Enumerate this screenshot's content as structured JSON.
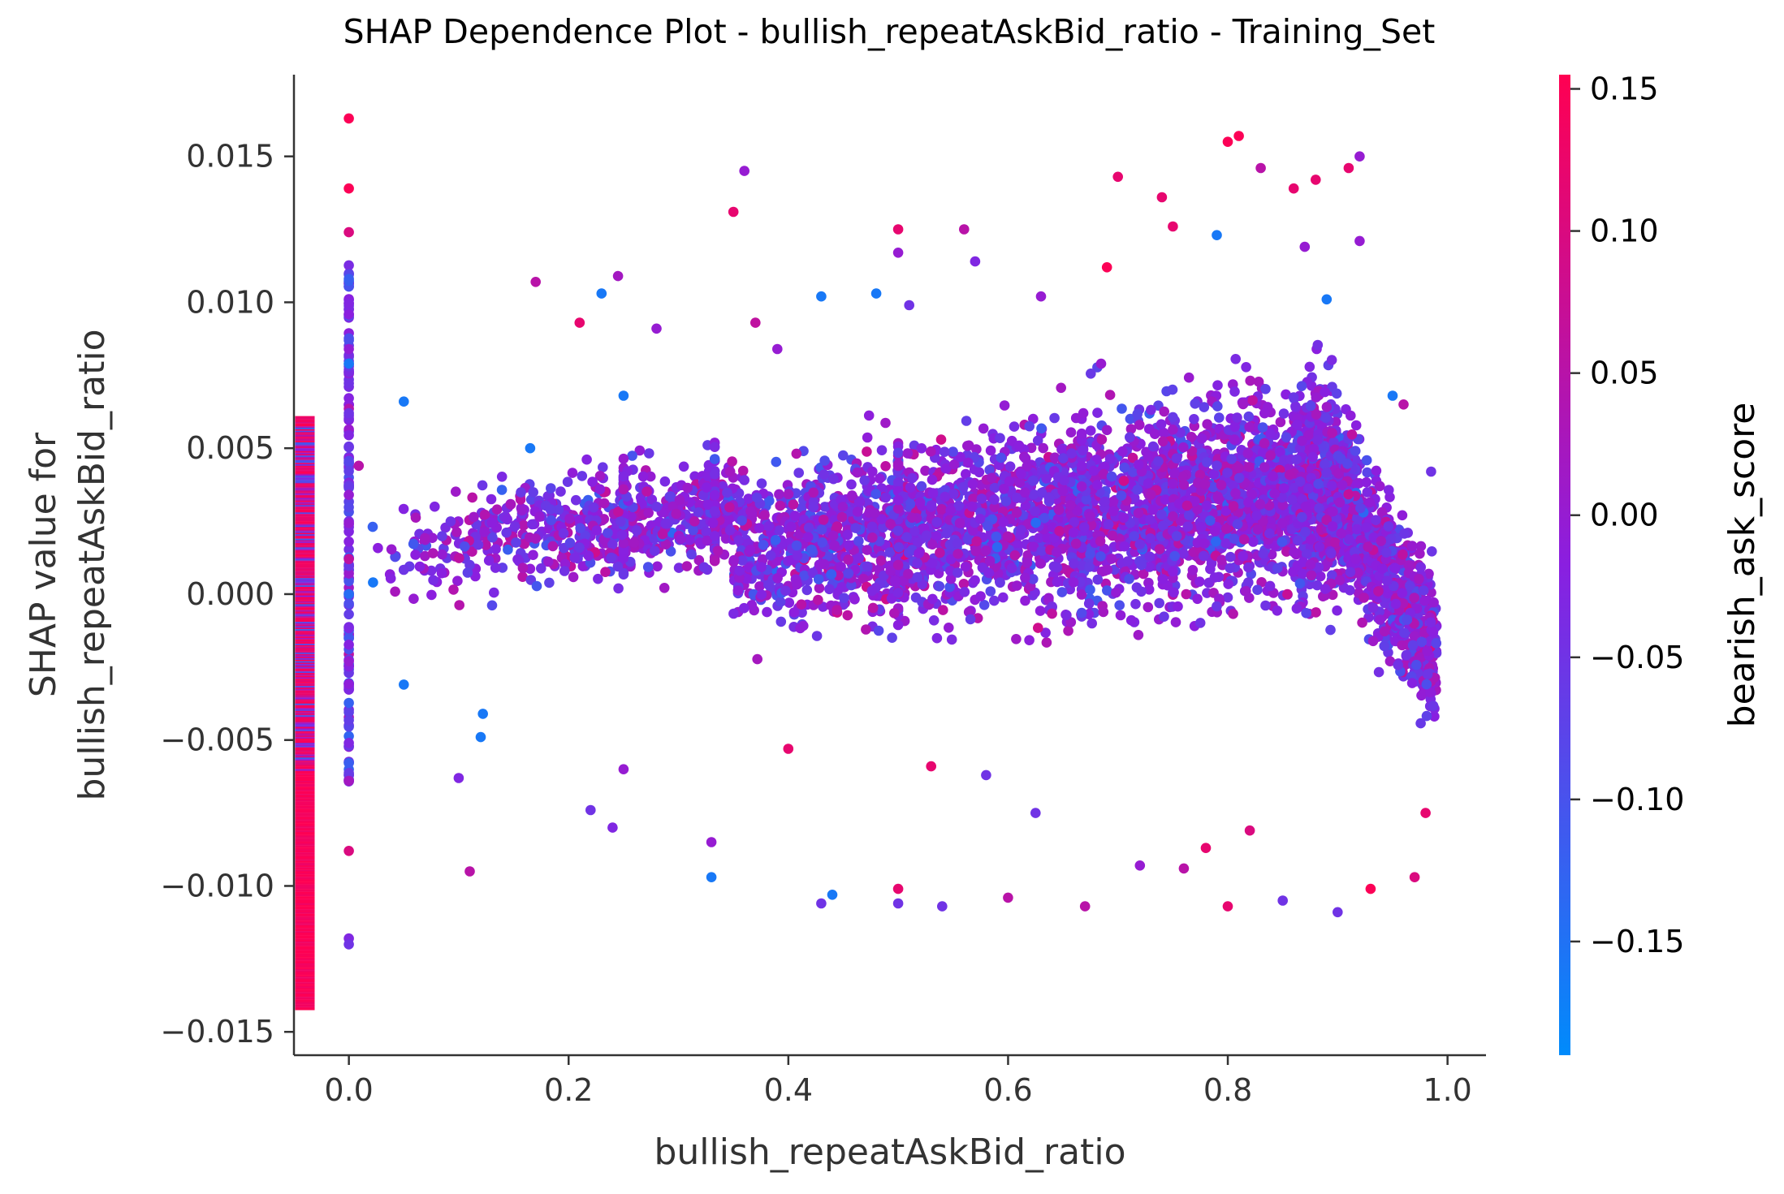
{
  "chart_data": {
    "type": "scatter",
    "title": "SHAP Dependence Plot - bullish_repeatAskBid_ratio - Training_Set",
    "xlabel": "bullish_repeatAskBid_ratio",
    "ylabel_line1": "SHAP value for",
    "ylabel_line2": "bullish_repeatAskBid_ratio",
    "xlim": [
      -0.05,
      1.035
    ],
    "ylim": [
      -0.0158,
      0.0178
    ],
    "x_ticks": [
      {
        "value": 0.0,
        "label": "0.0"
      },
      {
        "value": 0.2,
        "label": "0.2"
      },
      {
        "value": 0.4,
        "label": "0.4"
      },
      {
        "value": 0.6,
        "label": "0.6"
      },
      {
        "value": 0.8,
        "label": "0.8"
      },
      {
        "value": 1.0,
        "label": "1.0"
      }
    ],
    "y_ticks": [
      {
        "value": 0.015,
        "label": "0.015"
      },
      {
        "value": 0.01,
        "label": "0.010"
      },
      {
        "value": 0.005,
        "label": "0.005"
      },
      {
        "value": 0.0,
        "label": "0.000"
      },
      {
        "value": -0.005,
        "label": "−0.005"
      },
      {
        "value": -0.01,
        "label": "−0.010"
      },
      {
        "value": -0.015,
        "label": "−0.015"
      }
    ],
    "grid": false,
    "colorbar": {
      "label": "bearish_ask_score",
      "range": [
        -0.19,
        0.155
      ],
      "low_color": "#008bfb",
      "mid_color": "#8a1fe0",
      "high_color": "#ff0052",
      "ticks": [
        {
          "value": 0.15,
          "label": "0.15"
        },
        {
          "value": 0.1,
          "label": "0.10"
        },
        {
          "value": 0.05,
          "label": "0.05"
        },
        {
          "value": 0.0,
          "label": "0.00"
        },
        {
          "value": -0.05,
          "label": "−0.05"
        },
        {
          "value": -0.1,
          "label": "−0.10"
        },
        {
          "value": -0.15,
          "label": "−0.15"
        }
      ]
    },
    "missing_strip": {
      "x": -0.04,
      "y_min": -0.0142,
      "y_max": 0.0061,
      "note_color_bias": "high"
    },
    "points": [
      [
        0.0,
        0.0163,
        0.15
      ],
      [
        0.0,
        0.0139,
        0.15
      ],
      [
        0.0,
        0.0124,
        0.1
      ],
      [
        0.0,
        0.0108,
        -0.12
      ],
      [
        0.0,
        0.0079,
        -0.16
      ],
      [
        0.0,
        0.0062,
        -0.05
      ],
      [
        0.0,
        0.0034,
        0.0
      ],
      [
        0.0,
        0.0012,
        0.06
      ],
      [
        0.0,
        -0.0023,
        0.0
      ],
      [
        0.0,
        -0.0051,
        -0.03
      ],
      [
        0.0,
        -0.0064,
        0.02
      ],
      [
        0.0,
        -0.0088,
        0.1
      ],
      [
        0.0,
        -0.0118,
        -0.03
      ],
      [
        0.0,
        -0.012,
        -0.05
      ],
      [
        0.009,
        0.0044,
        0.05
      ],
      [
        0.022,
        0.0004,
        -0.16
      ],
      [
        0.05,
        0.0066,
        -0.16
      ],
      [
        0.05,
        -0.0031,
        -0.16
      ],
      [
        0.1,
        -0.0063,
        -0.03
      ],
      [
        0.11,
        -0.0095,
        0.05
      ],
      [
        0.12,
        -0.0049,
        -0.16
      ],
      [
        0.122,
        -0.0041,
        -0.16
      ],
      [
        0.165,
        0.005,
        -0.16
      ],
      [
        0.17,
        0.0107,
        0.05
      ],
      [
        0.21,
        0.0093,
        0.12
      ],
      [
        0.22,
        -0.0074,
        -0.05
      ],
      [
        0.23,
        0.0103,
        -0.16
      ],
      [
        0.245,
        0.0109,
        0.02
      ],
      [
        0.24,
        -0.008,
        -0.03
      ],
      [
        0.25,
        0.0068,
        -0.16
      ],
      [
        0.25,
        -0.006,
        0.0
      ],
      [
        0.28,
        0.0091,
        0.0
      ],
      [
        0.33,
        -0.0097,
        -0.16
      ],
      [
        0.33,
        -0.0085,
        0.0
      ],
      [
        0.35,
        0.0131,
        0.12
      ],
      [
        0.36,
        0.0145,
        0.0
      ],
      [
        0.37,
        0.0093,
        0.06
      ],
      [
        0.39,
        0.0084,
        0.0
      ],
      [
        0.4,
        -0.0053,
        0.12
      ],
      [
        0.43,
        -0.0106,
        -0.05
      ],
      [
        0.44,
        -0.0103,
        -0.16
      ],
      [
        0.43,
        0.0102,
        -0.16
      ],
      [
        0.48,
        0.0103,
        -0.16
      ],
      [
        0.5,
        0.0125,
        0.12
      ],
      [
        0.5,
        0.0117,
        0.0
      ],
      [
        0.5,
        -0.0101,
        0.12
      ],
      [
        0.5,
        -0.0106,
        -0.05
      ],
      [
        0.51,
        0.0099,
        -0.05
      ],
      [
        0.53,
        -0.0059,
        0.12
      ],
      [
        0.54,
        -0.0107,
        -0.05
      ],
      [
        0.56,
        0.0125,
        0.05
      ],
      [
        0.57,
        0.0114,
        -0.03
      ],
      [
        0.58,
        -0.0062,
        -0.05
      ],
      [
        0.6,
        -0.0104,
        0.05
      ],
      [
        0.625,
        -0.0075,
        -0.05
      ],
      [
        0.63,
        0.0102,
        0.0
      ],
      [
        0.67,
        -0.0107,
        0.05
      ],
      [
        0.69,
        0.0112,
        0.15
      ],
      [
        0.7,
        0.0143,
        0.12
      ],
      [
        0.72,
        -0.0093,
        0.0
      ],
      [
        0.74,
        0.0136,
        0.12
      ],
      [
        0.75,
        0.0126,
        0.12
      ],
      [
        0.76,
        -0.0094,
        0.05
      ],
      [
        0.78,
        -0.0087,
        0.12
      ],
      [
        0.79,
        0.0123,
        -0.16
      ],
      [
        0.8,
        0.0155,
        0.15
      ],
      [
        0.81,
        0.0157,
        0.15
      ],
      [
        0.8,
        -0.0107,
        0.12
      ],
      [
        0.82,
        -0.0081,
        0.1
      ],
      [
        0.83,
        0.0146,
        0.05
      ],
      [
        0.85,
        -0.0105,
        -0.05
      ],
      [
        0.86,
        0.0139,
        0.12
      ],
      [
        0.87,
        0.0119,
        0.0
      ],
      [
        0.88,
        0.0142,
        0.12
      ],
      [
        0.89,
        0.0101,
        -0.16
      ],
      [
        0.9,
        -0.0109,
        -0.05
      ],
      [
        0.91,
        0.0146,
        0.12
      ],
      [
        0.92,
        0.015,
        0.0
      ],
      [
        0.92,
        0.0121,
        0.0
      ],
      [
        0.93,
        -0.0101,
        0.15
      ],
      [
        0.95,
        0.0068,
        -0.16
      ],
      [
        0.96,
        0.0065,
        0.05
      ],
      [
        0.97,
        -0.0097,
        0.1
      ],
      [
        0.98,
        -0.0075,
        0.12
      ],
      [
        0.985,
        0.0042,
        -0.05
      ]
    ]
  }
}
